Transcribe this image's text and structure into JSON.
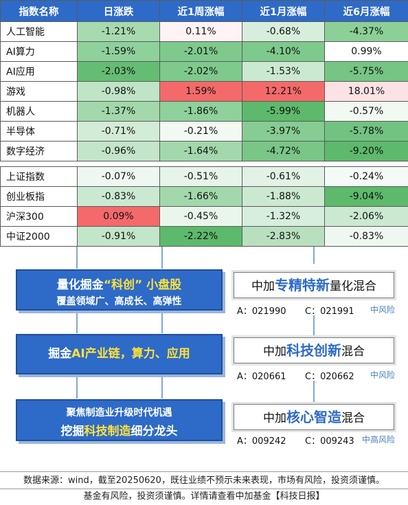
{
  "table": {
    "headers": [
      "指数名称",
      "日涨跌",
      "近1周涨幅",
      "近1月涨幅",
      "近6月涨幅"
    ],
    "group1": [
      {
        "name": "人工智能",
        "values": [
          "-1.21%",
          "0.11%",
          "-0.68%",
          "-4.37%"
        ],
        "colors": [
          "#a8dab0",
          "#fff3f5",
          "#d8eedc",
          "#8cd098"
        ]
      },
      {
        "name": "AI算力",
        "values": [
          "-1.59%",
          "-2.01%",
          "-4.10%",
          "0.99%"
        ],
        "colors": [
          "#8fd19a",
          "#7ec98c",
          "#7ec98c",
          "#ffffff"
        ]
      },
      {
        "name": "AI应用",
        "values": [
          "-2.03%",
          "-2.02%",
          "-1.53%",
          "-5.75%"
        ],
        "colors": [
          "#65bd73",
          "#7ec98c",
          "#cbe9d1",
          "#76c584"
        ]
      },
      {
        "name": "游戏",
        "values": [
          "-0.98%",
          "1.59%",
          "12.21%",
          "18.01%"
        ],
        "colors": [
          "#bfe4c6",
          "#f46a6a",
          "#f46a6a",
          "#fce2e4"
        ]
      },
      {
        "name": "机器人",
        "values": [
          "-1.37%",
          "-1.86%",
          "-5.99%",
          "-0.57%"
        ],
        "colors": [
          "#a2d8ab",
          "#8fd19a",
          "#5db96c",
          "#f1f9f2"
        ]
      },
      {
        "name": "半导体",
        "values": [
          "-0.71%",
          "-0.21%",
          "-3.97%",
          "-5.78%"
        ],
        "colors": [
          "#d3ecd7",
          "#f2f9f3",
          "#86cc93",
          "#72c381"
        ]
      },
      {
        "name": "数字经济",
        "values": [
          "-0.96%",
          "-1.64%",
          "-4.72%",
          "-9.20%"
        ],
        "colors": [
          "#c3e5c9",
          "#a2d8ab",
          "#79c687",
          "#5db96c"
        ]
      }
    ],
    "group2": [
      {
        "name": "上证指数",
        "values": [
          "-0.07%",
          "-0.51%",
          "-0.61%",
          "-0.24%"
        ],
        "colors": [
          "#eef8f0",
          "#e6f4e9",
          "#e2f3e5",
          "#f4faf5"
        ]
      },
      {
        "name": "创业板指",
        "values": [
          "-0.83%",
          "-1.66%",
          "-1.88%",
          "-9.04%"
        ],
        "colors": [
          "#cbe9d1",
          "#a2d8ab",
          "#cbe9d1",
          "#5db96c"
        ]
      },
      {
        "name": "沪深300",
        "values": [
          "0.09%",
          "-0.45%",
          "-1.32%",
          "-2.06%"
        ],
        "colors": [
          "#f46a6a",
          "#eaf6ec",
          "#d8eedc",
          "#cbe9d1"
        ]
      },
      {
        "name": "中证2000",
        "values": [
          "-0.91%",
          "-2.22%",
          "-2.83%",
          "-0.83%"
        ],
        "colors": [
          "#c3e5c9",
          "#5db96c",
          "#b8e0bf",
          "#eef8f0"
        ]
      }
    ]
  },
  "left_boxes": {
    "box1": {
      "line1_a": "量化掘金",
      "line1_b": "“科创”",
      "line1_c": "小盘股",
      "line2": "覆盖领域广、高成长、高弹性"
    },
    "box2": {
      "a": "掘金",
      "b": "AI产业链，算力、应用"
    },
    "box3": {
      "line1": "聚焦制造业升级时代机遇",
      "line2_a": "挖掘",
      "line2_b": "科技制造",
      "line2_c": "细分龙头"
    }
  },
  "funds": [
    {
      "prefix": "中加",
      "highlight": "专精特新",
      "suffix": "量化混合",
      "code_a": "A：021990",
      "code_c": "C：021991",
      "risk": "中风险"
    },
    {
      "prefix": "中加",
      "highlight": "科技创新",
      "suffix": "混合",
      "code_a": "A：020661",
      "code_c": "C：020662",
      "risk": "中风险"
    },
    {
      "prefix": "中加",
      "highlight": "核心智造",
      "suffix": "混合",
      "code_a": "A：009242",
      "code_c": "C：009243",
      "risk": "中高风险"
    }
  ],
  "footer": {
    "line1": "数据来源：wind，截至20250620，既往业绩不预示未来表现，市场有风险，投资须谨慎。",
    "line2": "基金有风险，投资须谨慎。详情请查看中加基金【科技日报】"
  },
  "colors": {
    "header_blue": "#2e6ac7",
    "up_red": "#f46a6a",
    "down_green": "#5db96c",
    "highlight_yellow": "#ffe23a"
  }
}
